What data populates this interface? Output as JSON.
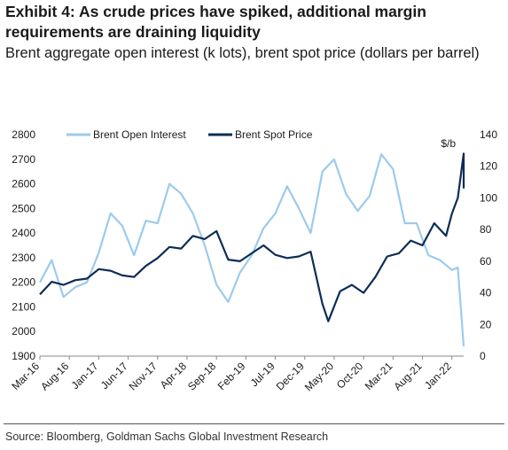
{
  "header": {
    "title": "Exhibit 4: As crude prices have spiked, additional margin requirements are draining liquidity",
    "subtitle": "Brent aggregate open interest (k lots), brent spot price (dollars per barrel)"
  },
  "footer": {
    "source": "Source: Bloomberg, Goldman Sachs Global Investment Research"
  },
  "colors": {
    "open_interest": "#9ccbec",
    "spot_price": "#0d2d55"
  },
  "chart_data": {
    "type": "line",
    "title": "",
    "xlabel": "",
    "y_left": {
      "label": "",
      "lim": [
        1900,
        2800
      ],
      "ticks": [
        "1900",
        "2000",
        "2100",
        "2200",
        "2300",
        "2400",
        "2500",
        "2600",
        "2700",
        "2800"
      ]
    },
    "y_right": {
      "label": "$/b",
      "lim": [
        0,
        140
      ],
      "ticks": [
        "0",
        "20",
        "40",
        "60",
        "80",
        "100",
        "120",
        "140"
      ]
    },
    "x_tick_labels": [
      "Mar-16",
      "Aug-16",
      "Jan-17",
      "Jun-17",
      "Nov-17",
      "Apr-18",
      "Sep-18",
      "Feb-19",
      "Jul-19",
      "Dec-19",
      "May-20",
      "Oct-20",
      "Mar-21",
      "Aug-21",
      "Jan-22"
    ],
    "x_ticks": [
      "2016-03",
      "2016-08",
      "2017-01",
      "2017-06",
      "2017-11",
      "2018-04",
      "2018-09",
      "2019-02",
      "2019-07",
      "2019-12",
      "2020-05",
      "2020-10",
      "2021-03",
      "2021-08",
      "2022-01"
    ],
    "x_range": [
      "2016-03",
      "2022-03"
    ],
    "legend": "top-left",
    "grid": false,
    "series": [
      {
        "name": "Brent Open Interest",
        "axis": "left",
        "x": [
          "2016-03",
          "2016-05",
          "2016-07",
          "2016-09",
          "2016-11",
          "2017-01",
          "2017-03",
          "2017-05",
          "2017-07",
          "2017-09",
          "2017-11",
          "2018-01",
          "2018-03",
          "2018-05",
          "2018-07",
          "2018-09",
          "2018-11",
          "2019-01",
          "2019-03",
          "2019-05",
          "2019-07",
          "2019-09",
          "2019-11",
          "2020-01",
          "2020-03",
          "2020-05",
          "2020-07",
          "2020-09",
          "2020-11",
          "2021-01",
          "2021-03",
          "2021-05",
          "2021-07",
          "2021-09",
          "2021-11",
          "2022-01",
          "2022-02",
          "2022-03"
        ],
        "values": [
          2200,
          2290,
          2140,
          2180,
          2200,
          2320,
          2480,
          2430,
          2310,
          2450,
          2440,
          2600,
          2560,
          2480,
          2350,
          2190,
          2120,
          2240,
          2310,
          2420,
          2480,
          2590,
          2500,
          2400,
          2650,
          2700,
          2560,
          2490,
          2550,
          2720,
          2660,
          2440,
          2440,
          2310,
          2290,
          2250,
          2260,
          1940
        ]
      },
      {
        "name": "Brent Spot Price",
        "axis": "right",
        "x": [
          "2016-03",
          "2016-05",
          "2016-07",
          "2016-09",
          "2016-11",
          "2017-01",
          "2017-03",
          "2017-05",
          "2017-07",
          "2017-09",
          "2017-11",
          "2018-01",
          "2018-03",
          "2018-05",
          "2018-07",
          "2018-09",
          "2018-11",
          "2019-01",
          "2019-03",
          "2019-05",
          "2019-07",
          "2019-09",
          "2019-11",
          "2020-01",
          "2020-03",
          "2020-04",
          "2020-06",
          "2020-08",
          "2020-10",
          "2020-12",
          "2021-02",
          "2021-04",
          "2021-06",
          "2021-08",
          "2021-10",
          "2021-12",
          "2022-01",
          "2022-02",
          "2022-03",
          "2022-03"
        ],
        "values": [
          39,
          47,
          45,
          48,
          49,
          55,
          54,
          51,
          50,
          57,
          62,
          69,
          68,
          76,
          74,
          79,
          61,
          60,
          65,
          70,
          64,
          62,
          63,
          66,
          33,
          22,
          41,
          45,
          40,
          50,
          63,
          65,
          73,
          70,
          84,
          76,
          90,
          100,
          128,
          106
        ]
      }
    ]
  }
}
